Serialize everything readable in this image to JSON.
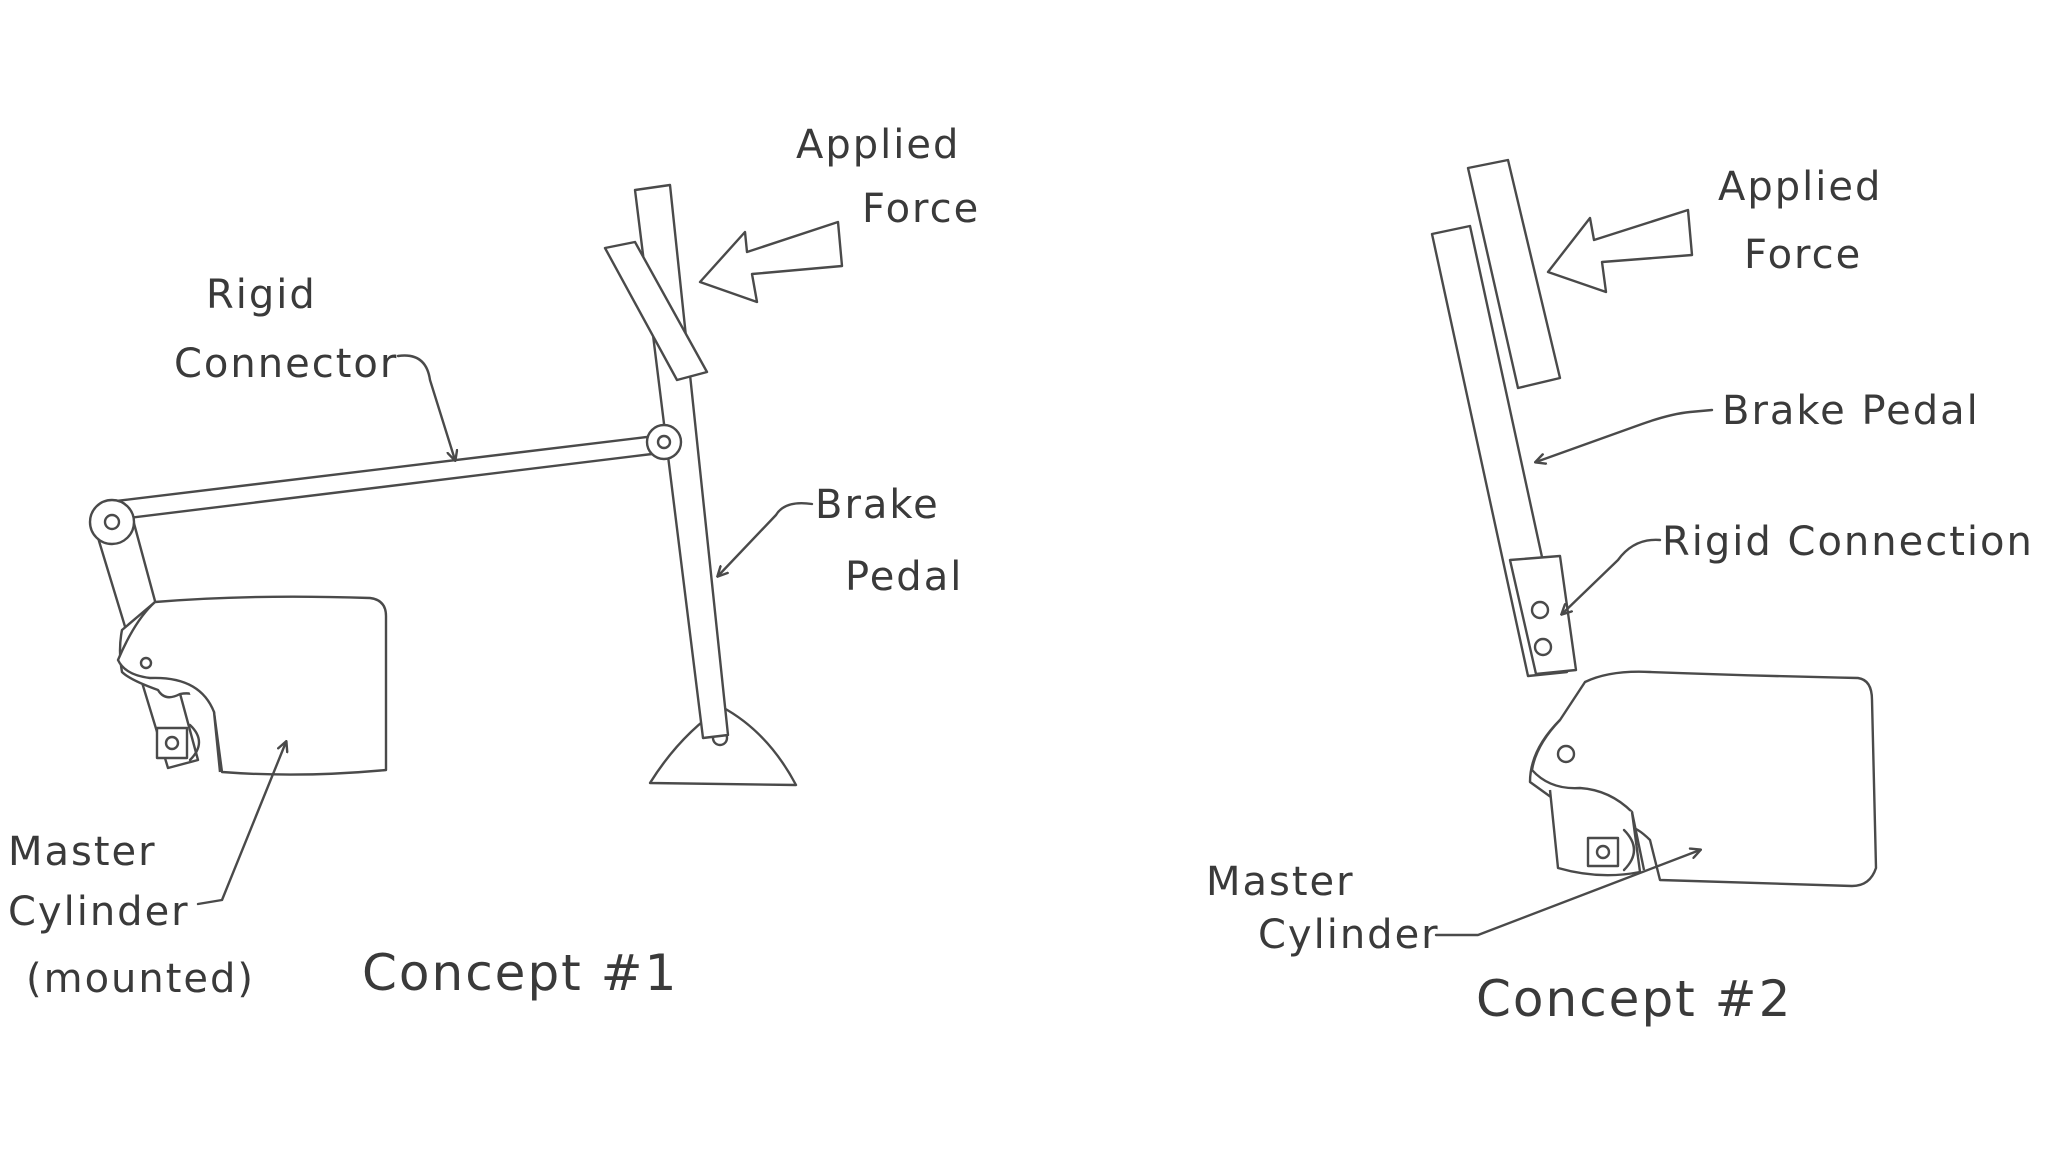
{
  "concept1": {
    "applied_force": [
      "Applied",
      "Force"
    ],
    "rigid_connector": [
      "Rigid",
      "Connector"
    ],
    "brake_pedal": [
      "Brake",
      "Pedal"
    ],
    "master_cylinder": [
      "Master",
      "Cylinder",
      "(mounted)"
    ],
    "caption": "Concept #1"
  },
  "concept2": {
    "applied_force": [
      "Applied",
      "Force"
    ],
    "brake_pedal": "Brake Pedal",
    "rigid_connection": "Rigid Connection",
    "master_cylinder": [
      "Master",
      "Cylinder"
    ],
    "caption": "Concept #2"
  }
}
